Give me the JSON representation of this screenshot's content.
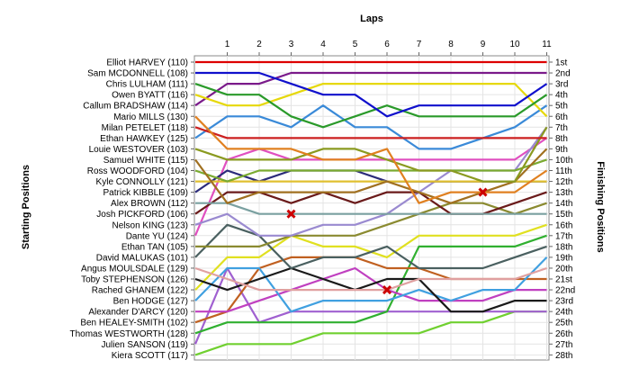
{
  "chart_data": {
    "type": "line",
    "title": "",
    "xlabel": "Laps",
    "ylabel_left": "Starting Positions",
    "ylabel_right": "Finishing Positions",
    "x": [
      0,
      1,
      2,
      3,
      4,
      5,
      6,
      7,
      8,
      9,
      10,
      11
    ],
    "x_ticks": [
      1,
      2,
      3,
      4,
      5,
      6,
      7,
      8,
      9,
      10,
      11
    ],
    "y_inverted": true,
    "y_range": [
      1,
      28
    ],
    "grid": true,
    "left_labels": [
      "Elliot HARVEY (110)",
      "Sam MCDONNELL (108)",
      "Chris LULHAM (111)",
      "Owen BYATT (116)",
      "Callum BRADSHAW (114)",
      "Mario MILLS (130)",
      "Milan PETELET (118)",
      "Ethan HAWKEY (125)",
      "Louie WESTOVER (103)",
      "Samuel WHITE (115)",
      "Ross WOODFORD (104)",
      "Kyle CONNOLLY (121)",
      "Patrick KIBBLE (109)",
      "Alex BROWN (112)",
      "Josh PICKFORD (106)",
      "Nelson KING (123)",
      "Dante YU (124)",
      "Ethan TAN (105)",
      "David MALUKAS (101)",
      "Angus  MOULSDALE (129)",
      "Toby STEPHENSON (126)",
      "Rached GHANEM (122)",
      "Ben HODGE (127)",
      "Alexander D'ARCY (120)",
      "Ben HEALEY-SMITH (102)",
      "Thomas WESTWORTH (128)",
      "Julien SANSON (119)",
      "Kiera SCOTT (117)"
    ],
    "right_labels": [
      "1st",
      "2nd",
      "3rd",
      "4th",
      "5th",
      "6th",
      "7th",
      "8th",
      "9th",
      "10th",
      "11th",
      "12th",
      "13th",
      "14th",
      "15th",
      "16th",
      "17th",
      "18th",
      "19th",
      "20th",
      "21st",
      "22nd",
      "23rd",
      "24th",
      "25th",
      "26th",
      "27th",
      "28th"
    ],
    "series": [
      {
        "color": "#dd0000",
        "values": [
          1,
          1,
          1,
          1,
          1,
          1,
          1,
          1,
          1,
          1,
          1,
          1
        ]
      },
      {
        "color": "#1010cc",
        "values": [
          2,
          2,
          2,
          3,
          4,
          4,
          6,
          5,
          5,
          5,
          5,
          3
        ]
      },
      {
        "color": "#2a9a2a",
        "values": [
          3,
          4,
          4,
          6,
          7,
          6,
          5,
          6,
          6,
          6,
          6,
          4
        ]
      },
      {
        "color": "#e6d80a",
        "values": [
          4,
          5,
          5,
          4,
          3,
          3,
          3,
          3,
          3,
          3,
          3,
          6
        ]
      },
      {
        "color": "#7a1a8a",
        "values": [
          5,
          3,
          3,
          2,
          2,
          2,
          2,
          2,
          2,
          2,
          2,
          2
        ]
      },
      {
        "color": "#e08020",
        "values": [
          6,
          9,
          9,
          9,
          10,
          10,
          9,
          14,
          13,
          13,
          13,
          11
        ]
      },
      {
        "color": "#cc2020",
        "values": [
          7,
          8,
          8,
          8,
          8,
          8,
          8,
          8,
          8,
          8,
          8,
          8
        ]
      },
      {
        "color": "#3a8ad8",
        "values": [
          8,
          6,
          6,
          7,
          5,
          7,
          7,
          9,
          9,
          8,
          7,
          5
        ]
      },
      {
        "color": "#8a9a20",
        "values": [
          9,
          10,
          10,
          10,
          9,
          9,
          10,
          11,
          11,
          12,
          12,
          7
        ]
      },
      {
        "color": "#a07020",
        "values": [
          10,
          14,
          13,
          13,
          13,
          13,
          12,
          13,
          14,
          13,
          12,
          9
        ]
      },
      {
        "color": "#7aaa30",
        "values": [
          11,
          12,
          11,
          11,
          11,
          11,
          11,
          11,
          11,
          11,
          11,
          10
        ]
      },
      {
        "color": "#e0c030",
        "values": [
          12,
          12,
          12,
          12,
          12,
          12,
          12,
          12,
          12,
          12,
          12,
          12
        ]
      },
      {
        "color": "#2a2a7a",
        "values": [
          13,
          11,
          12,
          11,
          11,
          11,
          12,
          12,
          12,
          12,
          12,
          12
        ]
      },
      {
        "color": "#7aa0a0",
        "values": [
          14,
          14,
          15,
          15,
          15,
          15,
          15,
          15,
          15,
          15,
          15,
          15
        ]
      },
      {
        "color": "#6a1a1a",
        "values": [
          15,
          13,
          13,
          14,
          13,
          14,
          13,
          13,
          15,
          15,
          14,
          13
        ]
      },
      {
        "color": "#9a8ad0",
        "values": [
          16,
          15,
          17,
          17,
          16,
          16,
          15,
          13,
          11,
          11,
          11,
          7
        ]
      },
      {
        "color": "#e050c0",
        "values": [
          17,
          10,
          9,
          10,
          10,
          10,
          10,
          10,
          10,
          10,
          10,
          8
        ]
      },
      {
        "color": "#8a8a30",
        "values": [
          18,
          18,
          18,
          17,
          17,
          17,
          16,
          15,
          14,
          14,
          15,
          14
        ]
      },
      {
        "color": "#4a6060",
        "values": [
          19,
          16,
          17,
          20,
          19,
          19,
          18,
          20,
          20,
          20,
          19,
          18
        ]
      },
      {
        "color": "#e0a0a0",
        "values": [
          20,
          21,
          22,
          22,
          22,
          22,
          22,
          21,
          21,
          21,
          21,
          20
        ]
      },
      {
        "color": "#1a1a1a",
        "values": [
          21,
          22,
          21,
          20,
          21,
          22,
          21,
          21,
          24,
          24,
          23,
          23
        ]
      },
      {
        "color": "#e0e020",
        "values": [
          22,
          19,
          19,
          17,
          18,
          18,
          19,
          17,
          17,
          17,
          17,
          16
        ]
      },
      {
        "color": "#40a0e0",
        "values": [
          23,
          20,
          20,
          24,
          23,
          23,
          23,
          22,
          23,
          22,
          22,
          19
        ]
      },
      {
        "color": "#c040c0",
        "values": [
          24,
          24,
          23,
          22,
          21,
          20,
          22,
          23,
          23,
          23,
          22,
          22
        ]
      },
      {
        "color": "#c06020",
        "values": [
          25,
          24,
          20,
          19,
          19,
          19,
          20,
          20,
          21,
          21,
          21,
          21
        ]
      },
      {
        "color": "#30b030",
        "values": [
          26,
          25,
          25,
          25,
          25,
          25,
          24,
          18,
          18,
          18,
          18,
          17
        ]
      },
      {
        "color": "#a060d0",
        "values": [
          27,
          20,
          25,
          24,
          24,
          24,
          24,
          24,
          24,
          24,
          24,
          24
        ]
      },
      {
        "color": "#70d030",
        "values": [
          28,
          27,
          27,
          27,
          26,
          26,
          26,
          26,
          25,
          25,
          24,
          24
        ]
      }
    ],
    "markers": [
      {
        "x": 3,
        "y": 15,
        "symbol": "x",
        "color": "#cc0000"
      },
      {
        "x": 6,
        "y": 22,
        "symbol": "x",
        "color": "#cc0000"
      },
      {
        "x": 9,
        "y": 13,
        "symbol": "x",
        "color": "#cc0000"
      }
    ]
  }
}
